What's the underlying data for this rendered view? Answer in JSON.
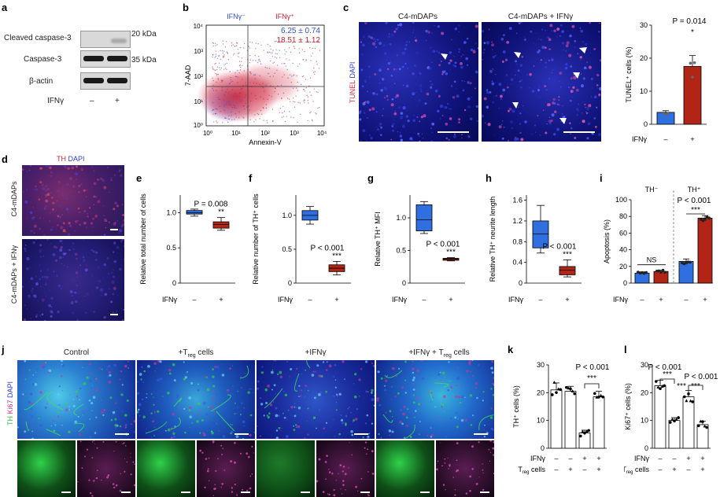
{
  "panel_labels": [
    "a",
    "b",
    "c",
    "d",
    "e",
    "f",
    "g",
    "h",
    "i",
    "j",
    "k",
    "l"
  ],
  "panel_a": {
    "rows": [
      "Cleaved caspase-3",
      "Caspase-3",
      "β-actin"
    ],
    "sizes": [
      "20 kDa",
      "35 kDa"
    ],
    "condition": "IFNγ",
    "signs": [
      "–",
      "+"
    ]
  },
  "panel_b": {
    "quadrant_left": "IFNγ⁻",
    "quadrant_right": "IFNγ⁺",
    "stat_neg": "6.25 ± 0.74",
    "stat_pos": "18.51 ± 1.12",
    "ylabel": "7-AAD",
    "xlabel": "Annexin-V",
    "ticks": [
      "10⁰",
      "10¹",
      "10²",
      "10³",
      "10⁴"
    ]
  },
  "panel_c": {
    "col1": "C4-mDAPs",
    "col2": "C4-mDAPs + IFNγ",
    "stain_tunel": "TUNEL",
    "stain_dapi": "DAPI",
    "chart_p": "P = 0.014",
    "chart_sig": "*",
    "ylabel": "TUNEL⁺ cells (%)",
    "yticks": [
      "0",
      "10",
      "20",
      "30"
    ],
    "condition": "IFNγ",
    "signs": [
      "–",
      "+"
    ]
  },
  "panel_d": {
    "stain_th": "TH",
    "stain_dapi": "DAPI",
    "row1": "C4-mDAPs",
    "row2": "C4-mDAPs + IFNγ"
  },
  "panel_e": {
    "ylabel": "Relative total number of cells",
    "p": "P = 0.008",
    "sig": "**",
    "yticks": [
      "0",
      "0.5",
      "1.0"
    ],
    "condition": "IFNγ",
    "signs": [
      "–",
      "+"
    ]
  },
  "panel_f": {
    "ylabel": "Relative number of TH⁺ cells",
    "p": "P < 0.001",
    "sig": "***",
    "yticks": [
      "0",
      "0.5",
      "1.0"
    ],
    "condition": "IFNγ",
    "signs": [
      "–",
      "+"
    ]
  },
  "panel_g": {
    "ylabel": "Relative TH⁺ MFI",
    "p": "P < 0.001",
    "sig": "***",
    "yticks": [
      "0",
      "0.5",
      "1.0"
    ],
    "condition": "IFNγ",
    "signs": [
      "–",
      "+"
    ]
  },
  "panel_h": {
    "ylabel": "Relative TH⁺ neurite length",
    "p": "P < 0.001",
    "sig": "***",
    "yticks": [
      "0",
      "0.4",
      "0.8",
      "1.2",
      "1.6"
    ],
    "condition": "IFNγ",
    "signs": [
      "–",
      "+"
    ]
  },
  "panel_i": {
    "ylabel": "Apoptosis (%)",
    "group_neg": "TH⁻",
    "group_pos": "TH⁺",
    "ns": "NS",
    "p": "P < 0.001",
    "sig": "***",
    "yticks": [
      "0",
      "20",
      "40",
      "60",
      "80",
      "100"
    ],
    "condition": "IFNγ",
    "signs": [
      "–",
      "+",
      "–",
      "+"
    ]
  },
  "panel_j": {
    "cols": [
      "Control",
      "+T",
      "+IFNγ",
      "+IFNγ + T"
    ],
    "treg_sub": "reg",
    "treg_suffix": " cells",
    "stain_th": "TH",
    "stain_ki67": "Ki67",
    "stain_dapi": "DAPI"
  },
  "panel_k": {
    "ylabel": "TH⁺ cells (%)",
    "p": "P < 0.001",
    "sig": "***",
    "yticks": [
      "0",
      "10",
      "20",
      "30"
    ],
    "row1": "IFNγ",
    "row2_t": "T",
    "row2_sub": "reg",
    "row2_suffix": " cells",
    "signs1": [
      "–",
      "–",
      "+",
      "+"
    ],
    "signs2": [
      "–",
      "+",
      "–",
      "+"
    ]
  },
  "panel_l": {
    "ylabel": "Ki67⁺ cells (%)",
    "p1": "P < 0.001",
    "p2": "P < 0.001",
    "sig1": "***",
    "sig2": "***",
    "sig3": "***",
    "yticks": [
      "0",
      "10",
      "20",
      "30"
    ],
    "row1": "IFNγ",
    "row2_t": "T",
    "row2_sub": "reg",
    "row2_suffix": " cells",
    "signs1": [
      "–",
      "–",
      "+",
      "+"
    ],
    "signs2": [
      "–",
      "+",
      "–",
      "+"
    ]
  },
  "colors": {
    "control": "#2f6fe0",
    "ifng": "#b22516",
    "dapi": "#1b1f9e",
    "th_green": "#2fd14a",
    "ki67": "#c2369c"
  },
  "chart_data": [
    {
      "panel": "c",
      "type": "bar",
      "categories": [
        "–",
        "+"
      ],
      "values": [
        3.6,
        17.5
      ],
      "errors": [
        0.5,
        3.3
      ],
      "ylabel": "TUNEL⁺ cells (%)",
      "ylim": [
        0,
        30
      ]
    },
    {
      "panel": "e",
      "type": "box",
      "categories": [
        "–",
        "+"
      ],
      "boxes": [
        [
          0.95,
          0.98,
          1.0,
          1.03,
          1.05
        ],
        [
          0.75,
          0.78,
          0.83,
          0.87,
          0.93
        ]
      ],
      "ylabel": "Relative total number of cells",
      "ylim": [
        0,
        1.25
      ]
    },
    {
      "panel": "f",
      "type": "box",
      "categories": [
        "–",
        "+"
      ],
      "boxes": [
        [
          0.87,
          0.93,
          1.0,
          1.07,
          1.13
        ],
        [
          0.12,
          0.17,
          0.22,
          0.27,
          0.32
        ]
      ],
      "ylabel": "Relative number of TH⁺ cells",
      "ylim": [
        0,
        1.3
      ]
    },
    {
      "panel": "g",
      "type": "box",
      "categories": [
        "–",
        "+"
      ],
      "boxes": [
        [
          0.76,
          0.8,
          0.97,
          1.2,
          1.25
        ],
        [
          0.34,
          0.35,
          0.37,
          0.38,
          0.39
        ]
      ],
      "ylabel": "Relative TH⁺ MFI",
      "ylim": [
        0,
        1.35
      ]
    },
    {
      "panel": "h",
      "type": "box",
      "categories": [
        "–",
        "+"
      ],
      "boxes": [
        [
          0.58,
          0.68,
          0.95,
          1.2,
          1.5
        ],
        [
          0.12,
          0.16,
          0.25,
          0.32,
          0.45
        ]
      ],
      "ylabel": "Relative TH⁺ neurite length",
      "ylim": [
        0,
        1.7
      ]
    },
    {
      "panel": "i",
      "type": "bar",
      "categories": [
        "TH⁻ –",
        "TH⁻ +",
        "TH⁺ –",
        "TH⁺ +"
      ],
      "values": [
        12,
        14,
        26,
        78
      ],
      "errors": [
        1.5,
        1.5,
        3,
        3
      ],
      "ylabel": "Apoptosis (%)",
      "ylim": [
        0,
        100
      ]
    },
    {
      "panel": "k",
      "type": "bar",
      "categories": [
        "–/–",
        "–/+",
        "+/–",
        "+/+"
      ],
      "values": [
        21,
        20.5,
        5.5,
        18.5
      ],
      "errors": [
        2.5,
        1.8,
        1,
        2
      ],
      "ylabel": "TH⁺ cells (%)",
      "ylim": [
        0,
        30
      ]
    },
    {
      "panel": "l",
      "type": "bar",
      "categories": [
        "–/–",
        "–/+",
        "+/–",
        "+/+"
      ],
      "values": [
        22.5,
        10,
        18.5,
        8.5
      ],
      "errors": [
        2,
        1,
        2.3,
        1.2
      ],
      "ylabel": "Ki67⁺ cells (%)",
      "ylim": [
        0,
        30
      ]
    }
  ]
}
